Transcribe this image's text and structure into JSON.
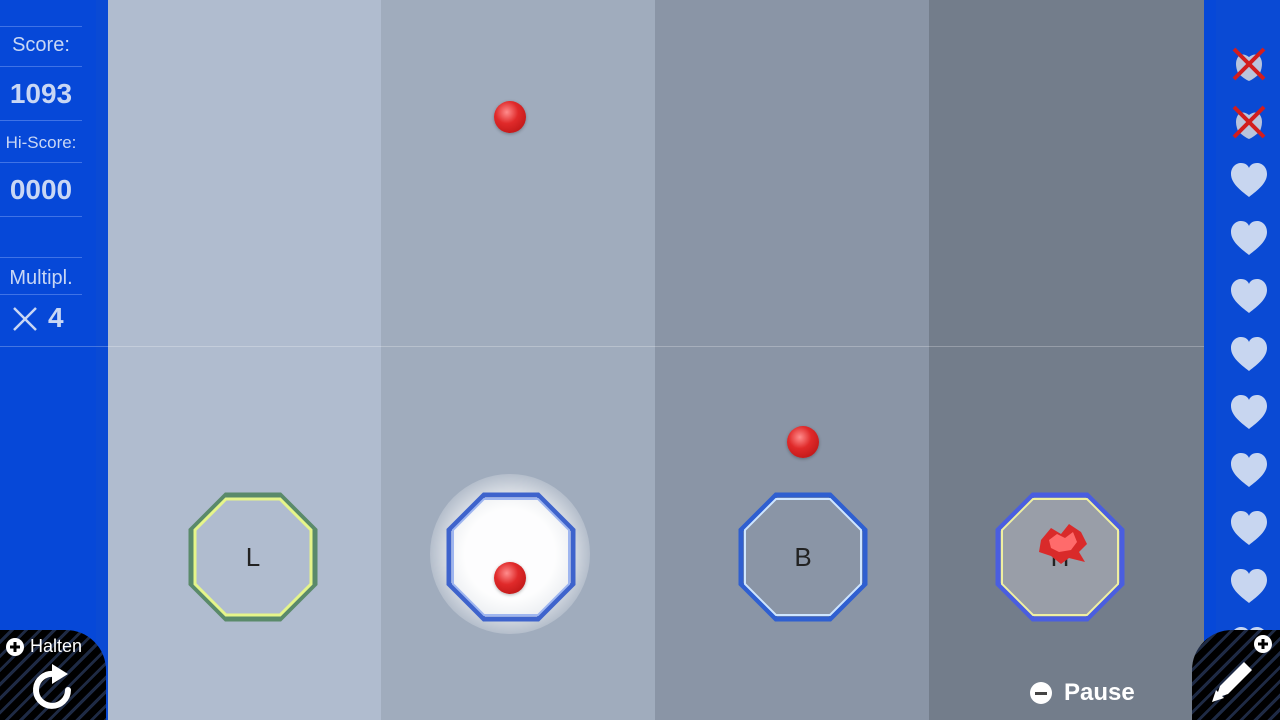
{
  "hud": {
    "score_label": "Score:",
    "score_value": "1093",
    "hiscore_label": "Hi-Score:",
    "hiscore_value": "0000",
    "multiplier_label": "Multipl.",
    "multiplier_value": "4",
    "multiplier_icon": "x-icon"
  },
  "lanes": [
    {
      "target_label": "L",
      "ring_color": "#c9e36a"
    },
    {
      "target_label": "",
      "ring_color": "#4a6fd8"
    },
    {
      "target_label": "B",
      "ring_color": "#3f78e0"
    },
    {
      "target_label": "H",
      "ring_color": "#6f7fe8"
    }
  ],
  "lives": {
    "lost": 2,
    "remaining": 9,
    "lost_icon": "red-x-icon",
    "remaining_icon": "heart-icon"
  },
  "controls": {
    "hold_label": "Halten",
    "pause_label": "Pause"
  },
  "colors": {
    "panel_blue": "#0648d8",
    "ball_red": "#d9272a",
    "heart": "#c8d6f0"
  }
}
